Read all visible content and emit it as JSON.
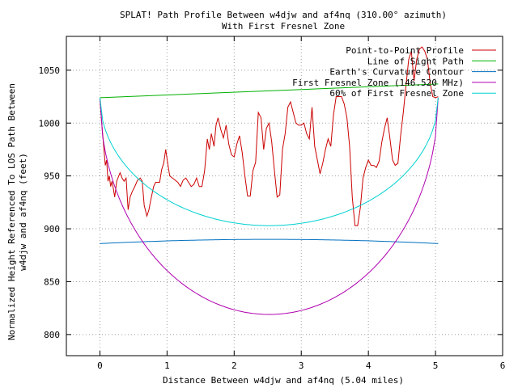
{
  "chart_data": {
    "type": "line",
    "title": "SPLAT! Path Profile Between w4djw and af4nq (310.00° azimuth)",
    "subtitle": "With First Fresnel Zone",
    "xlabel": "Distance Between w4djw and af4nq (5.04 miles)",
    "ylabel_line1": "Normalized Height Referenced To LOS Path Between",
    "ylabel_line2": "w4djw and af4nq (feet)",
    "xlim": [
      -0.5,
      6
    ],
    "ylim": [
      780,
      1082
    ],
    "xticks": [
      0,
      1,
      2,
      3,
      4,
      5,
      6
    ],
    "yticks": [
      800,
      850,
      900,
      950,
      1000,
      1050
    ],
    "grid": true,
    "legend_position": "top-right",
    "series": [
      {
        "name": "Point-to-Point Profile",
        "color": "#cc0000",
        "points": [
          [
            0.0,
            1022
          ],
          [
            0.04,
            990
          ],
          [
            0.06,
            975
          ],
          [
            0.08,
            960
          ],
          [
            0.1,
            965
          ],
          [
            0.12,
            945
          ],
          [
            0.14,
            950
          ],
          [
            0.16,
            940
          ],
          [
            0.18,
            945
          ],
          [
            0.2,
            938
          ],
          [
            0.22,
            930
          ],
          [
            0.25,
            945
          ],
          [
            0.28,
            950
          ],
          [
            0.3,
            953
          ],
          [
            0.33,
            948
          ],
          [
            0.36,
            945
          ],
          [
            0.39,
            948
          ],
          [
            0.42,
            918
          ],
          [
            0.45,
            930
          ],
          [
            0.48,
            935
          ],
          [
            0.52,
            940
          ],
          [
            0.56,
            946
          ],
          [
            0.6,
            948
          ],
          [
            0.63,
            945
          ],
          [
            0.66,
            922
          ],
          [
            0.7,
            912
          ],
          [
            0.73,
            918
          ],
          [
            0.76,
            928
          ],
          [
            0.8,
            940
          ],
          [
            0.83,
            944
          ],
          [
            0.86,
            944
          ],
          [
            0.89,
            944
          ],
          [
            0.92,
            956
          ],
          [
            0.95,
            962
          ],
          [
            0.98,
            975
          ],
          [
            1.01,
            962
          ],
          [
            1.04,
            950
          ],
          [
            1.08,
            948
          ],
          [
            1.12,
            946
          ],
          [
            1.16,
            944
          ],
          [
            1.2,
            940
          ],
          [
            1.24,
            946
          ],
          [
            1.28,
            948
          ],
          [
            1.32,
            944
          ],
          [
            1.36,
            940
          ],
          [
            1.4,
            942
          ],
          [
            1.44,
            948
          ],
          [
            1.48,
            940
          ],
          [
            1.52,
            940
          ],
          [
            1.56,
            955
          ],
          [
            1.6,
            985
          ],
          [
            1.63,
            975
          ],
          [
            1.66,
            990
          ],
          [
            1.7,
            978
          ],
          [
            1.73,
            998
          ],
          [
            1.76,
            1005
          ],
          [
            1.8,
            994
          ],
          [
            1.84,
            986
          ],
          [
            1.88,
            998
          ],
          [
            1.92,
            980
          ],
          [
            1.96,
            970
          ],
          [
            2.0,
            968
          ],
          [
            2.04,
            980
          ],
          [
            2.08,
            988
          ],
          [
            2.12,
            972
          ],
          [
            2.16,
            950
          ],
          [
            2.2,
            931
          ],
          [
            2.24,
            931
          ],
          [
            2.28,
            955
          ],
          [
            2.32,
            963
          ],
          [
            2.36,
            1010
          ],
          [
            2.4,
            1005
          ],
          [
            2.44,
            975
          ],
          [
            2.48,
            995
          ],
          [
            2.52,
            1000
          ],
          [
            2.56,
            982
          ],
          [
            2.6,
            955
          ],
          [
            2.64,
            930
          ],
          [
            2.68,
            932
          ],
          [
            2.72,
            975
          ],
          [
            2.76,
            990
          ],
          [
            2.8,
            1015
          ],
          [
            2.84,
            1020
          ],
          [
            2.88,
            1010
          ],
          [
            2.92,
            1000
          ],
          [
            2.96,
            998
          ],
          [
            3.0,
            998
          ],
          [
            3.04,
            1000
          ],
          [
            3.08,
            990
          ],
          [
            3.12,
            985
          ],
          [
            3.16,
            1015
          ],
          [
            3.2,
            978
          ],
          [
            3.24,
            965
          ],
          [
            3.28,
            952
          ],
          [
            3.32,
            962
          ],
          [
            3.36,
            975
          ],
          [
            3.4,
            985
          ],
          [
            3.44,
            978
          ],
          [
            3.48,
            1008
          ],
          [
            3.52,
            1025
          ],
          [
            3.56,
            1025
          ],
          [
            3.6,
            1025
          ],
          [
            3.64,
            1018
          ],
          [
            3.68,
            1005
          ],
          [
            3.72,
            978
          ],
          [
            3.76,
            930
          ],
          [
            3.8,
            903
          ],
          [
            3.84,
            903
          ],
          [
            3.88,
            920
          ],
          [
            3.92,
            948
          ],
          [
            3.96,
            958
          ],
          [
            4.0,
            965
          ],
          [
            4.04,
            960
          ],
          [
            4.08,
            960
          ],
          [
            4.12,
            958
          ],
          [
            4.16,
            964
          ],
          [
            4.2,
            982
          ],
          [
            4.24,
            995
          ],
          [
            4.28,
            1005
          ],
          [
            4.32,
            986
          ],
          [
            4.36,
            965
          ],
          [
            4.4,
            960
          ],
          [
            4.44,
            962
          ],
          [
            4.48,
            988
          ],
          [
            4.52,
            1010
          ],
          [
            4.56,
            1035
          ],
          [
            4.6,
            1060
          ],
          [
            4.64,
            1068
          ],
          [
            4.68,
            1040
          ],
          [
            4.72,
            1060
          ],
          [
            4.76,
            1070
          ],
          [
            4.8,
            1072
          ],
          [
            4.84,
            1068
          ],
          [
            4.88,
            1060
          ],
          [
            4.92,
            1038
          ],
          [
            4.96,
            1025
          ],
          [
            5.0,
            1024
          ],
          [
            5.04,
            1025
          ]
        ]
      },
      {
        "name": "Line of Sight Path",
        "color": "#00b000",
        "points": [
          [
            0.0,
            1024
          ],
          [
            5.04,
            1037
          ]
        ]
      },
      {
        "name": "Earth's Curvature Contour",
        "color": "#0070c0",
        "curve": {
          "endpoint_value": 886,
          "mid_value": 890,
          "x_start": 0,
          "x_end": 5.04
        }
      },
      {
        "name": "First Fresnel Zone (146.520 MHz)",
        "color": "#b000b0",
        "curve": {
          "endpoint_value": 1024,
          "mid_value": 819,
          "x_start": 0,
          "x_end": 5.04,
          "shape": "ellipse"
        }
      },
      {
        "name": "60% of First Fresnel Zone",
        "color": "#00d0d0",
        "curve": {
          "endpoint_value": 1024,
          "mid_value": 903,
          "x_start": 0,
          "x_end": 5.04,
          "shape": "ellipse"
        }
      }
    ]
  }
}
